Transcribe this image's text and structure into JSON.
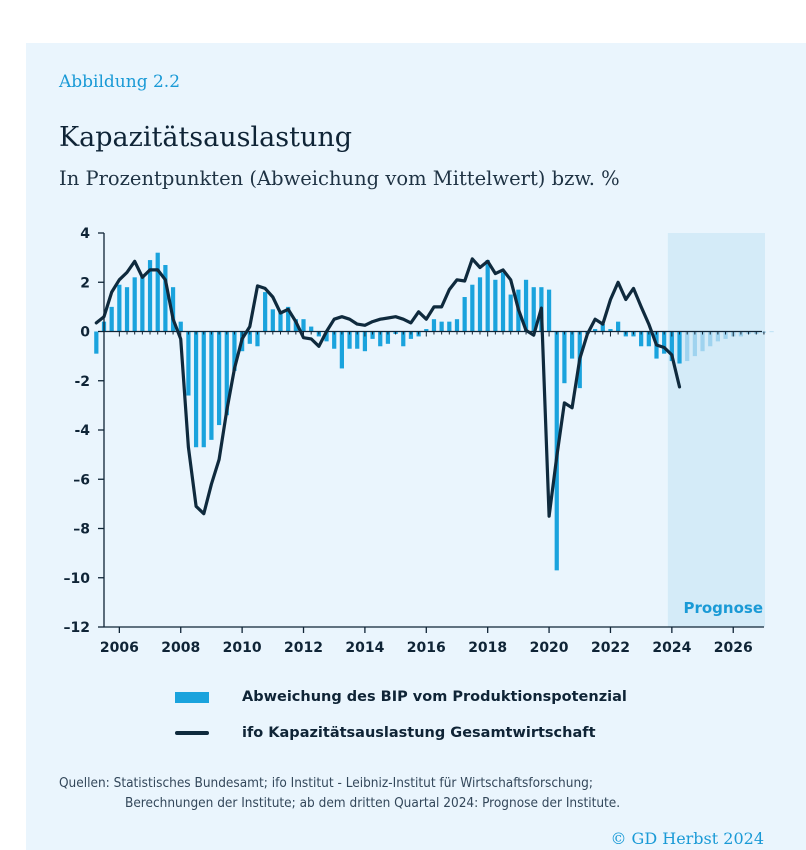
{
  "figure_label": "Abbildung 2.2",
  "title": "Kapazitätsauslastung",
  "subtitle": "In Prozentpunkten (Abweichung vom Mittelwert) bzw. %",
  "forecast_label": "Prognose",
  "legend": {
    "bar": "Abweichung des BIP vom Produktionspotenzial",
    "line": "ifo Kapazitätsauslastung Gesamtwirtschaft"
  },
  "source_line1": "Quellen: Statistisches Bundesamt; ifo Institut - Leibniz-Institut für Wirtschaftsforschung;",
  "source_line2": "Berechnungen der Institute; ab dem dritten Quartal 2024: Prognose der Institute.",
  "copyright": "© GD Herbst 2024",
  "colors": {
    "background": "#eaf5fd",
    "bar": "#1aa3dd",
    "bar_forecast": "#9fd3ef",
    "line": "#0f2a3d",
    "forecast_shade": "#d4ebf8",
    "accent": "#1a9ad6"
  },
  "chart_data": {
    "type": "bar",
    "x_start": 2005.25,
    "step": 0.25,
    "ylim": [
      -12,
      4
    ],
    "yticks": [
      4,
      2,
      0,
      -2,
      -4,
      -6,
      -8,
      -10,
      -12
    ],
    "ytick_labels": [
      "4",
      "2",
      "0",
      "-2",
      "-4",
      "–6",
      "–8",
      "–10",
      "–12"
    ],
    "xlim": [
      2005.5,
      2027.1
    ],
    "xticks": [
      2006,
      2008,
      2010,
      2012,
      2014,
      2016,
      2018,
      2020,
      2022,
      2024,
      2026
    ],
    "forecast_start": 2024.0,
    "series": [
      {
        "name": "Abweichung des BIP vom Produktionspotenzial",
        "type": "bar",
        "values": [
          -0.9,
          0.4,
          1.0,
          1.9,
          1.8,
          2.2,
          2.3,
          2.9,
          3.2,
          2.7,
          1.8,
          0.4,
          -2.6,
          -4.7,
          -4.7,
          -4.4,
          -3.8,
          -3.4,
          -1.6,
          -0.8,
          -0.5,
          -0.6,
          1.6,
          0.9,
          0.8,
          1.0,
          0.5,
          0.5,
          0.2,
          -0.2,
          -0.4,
          -0.7,
          -1.5,
          -0.7,
          -0.7,
          -0.8,
          -0.3,
          -0.6,
          -0.5,
          -0.1,
          -0.6,
          -0.3,
          -0.2,
          0.1,
          0.5,
          0.4,
          0.4,
          0.5,
          1.4,
          1.9,
          2.2,
          2.9,
          2.1,
          2.4,
          1.5,
          1.7,
          2.1,
          1.8,
          1.8,
          1.7,
          -9.7,
          -2.1,
          -1.1,
          -2.3,
          -0.1,
          0.1,
          0.3,
          0.1,
          0.4,
          -0.2,
          -0.2,
          -0.6,
          -0.6,
          -1.1,
          -0.9,
          -1.2,
          -1.3,
          -1.2,
          -1.0,
          -0.8,
          -0.6,
          -0.4,
          -0.3,
          -0.2,
          -0.2,
          -0.1,
          -0.1,
          -0.05,
          -0.02
        ]
      },
      {
        "name": "ifo Kapazitätsauslastung Gesamtwirtschaft",
        "type": "line",
        "values": [
          0.35,
          0.6,
          1.6,
          2.1,
          2.4,
          2.85,
          2.2,
          2.5,
          2.5,
          2.1,
          0.5,
          -0.3,
          -4.7,
          -7.1,
          -7.4,
          -6.2,
          -5.2,
          -3.2,
          -1.5,
          -0.3,
          0.2,
          1.85,
          1.75,
          1.4,
          0.75,
          0.9,
          0.4,
          -0.25,
          -0.3,
          -0.6,
          0.0,
          0.5,
          0.6,
          0.5,
          0.3,
          0.25,
          0.4,
          0.5,
          0.55,
          0.6,
          0.5,
          0.35,
          0.8,
          0.5,
          1.0,
          1.0,
          1.7,
          2.1,
          2.05,
          2.95,
          2.6,
          2.85,
          2.35,
          2.5,
          2.1,
          0.9,
          0.05,
          -0.15,
          0.95,
          -7.5,
          -5.1,
          -2.9,
          -3.1,
          -1.1,
          -0.1,
          0.5,
          0.3,
          1.3,
          2.0,
          1.3,
          1.75,
          1.0,
          0.3,
          -0.55,
          -0.65,
          -0.95,
          -2.25
        ]
      }
    ]
  }
}
